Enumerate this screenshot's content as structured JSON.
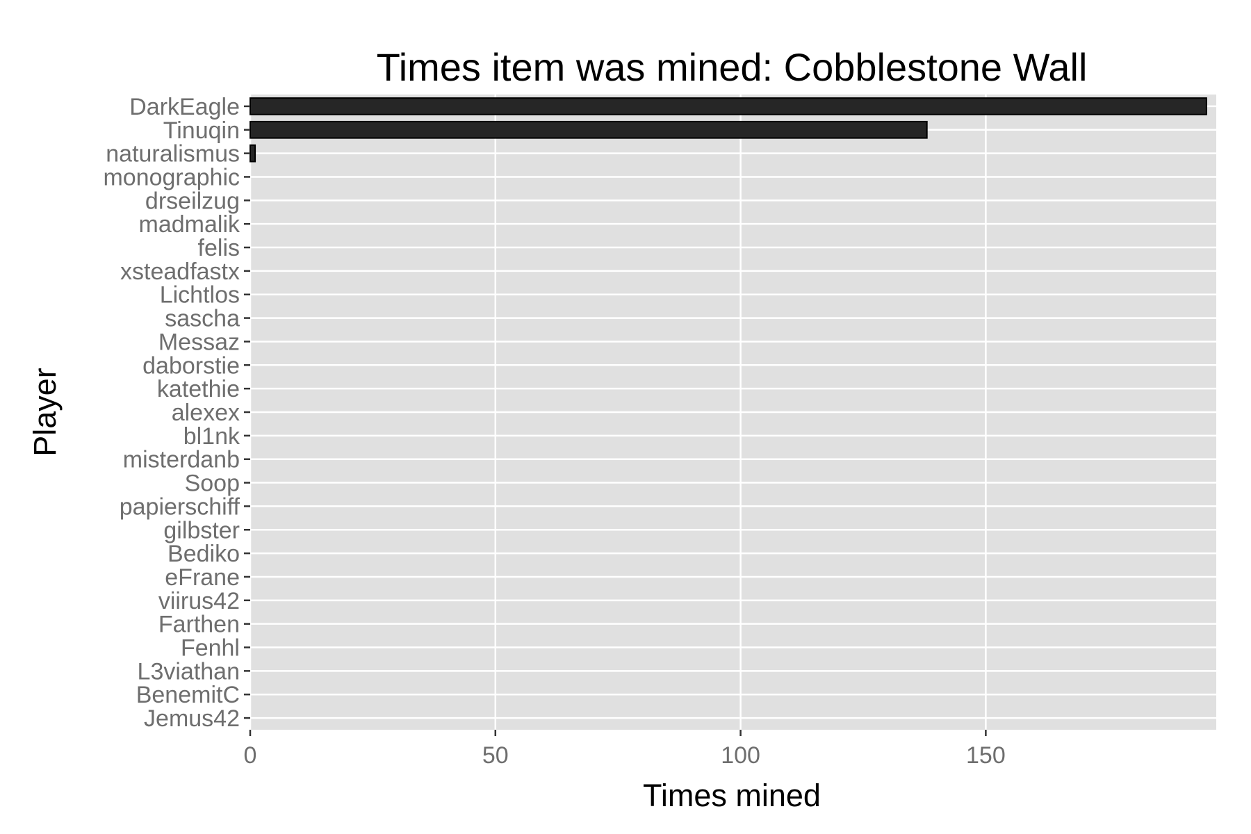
{
  "chart_data": {
    "type": "bar",
    "orientation": "horizontal",
    "title": "Times item was mined: Cobblestone Wall",
    "xlabel": "Times mined",
    "ylabel": "Player",
    "categories": [
      "DarkEagle",
      "Tinuqin",
      "naturalismus",
      "monographic",
      "drseilzug",
      "madmalik",
      "felis",
      "xsteadfastx",
      "Lichtlos",
      "sascha",
      "Messaz",
      "daborstie",
      "katethie",
      "alexex",
      "bl1nk",
      "misterdanb",
      "Soop",
      "papierschiff",
      "gilbster",
      "Bediko",
      "eFrane",
      "viirus42",
      "Farthen",
      "Fenhl",
      "L3viathan",
      "BenemitC",
      "Jemus42"
    ],
    "values": [
      195,
      138,
      1,
      0,
      0,
      0,
      0,
      0,
      0,
      0,
      0,
      0,
      0,
      0,
      0,
      0,
      0,
      0,
      0,
      0,
      0,
      0,
      0,
      0,
      0,
      0,
      0
    ],
    "xlim": [
      0,
      197
    ],
    "xticks": [
      0,
      50,
      100,
      150
    ],
    "grid": true,
    "legend": "none",
    "colors": {
      "panel": "#e0e0e0",
      "bar": "#262626",
      "bar_outline": "#000000",
      "grid": "#ffffff",
      "tick_text": "#6e6e6e"
    }
  }
}
